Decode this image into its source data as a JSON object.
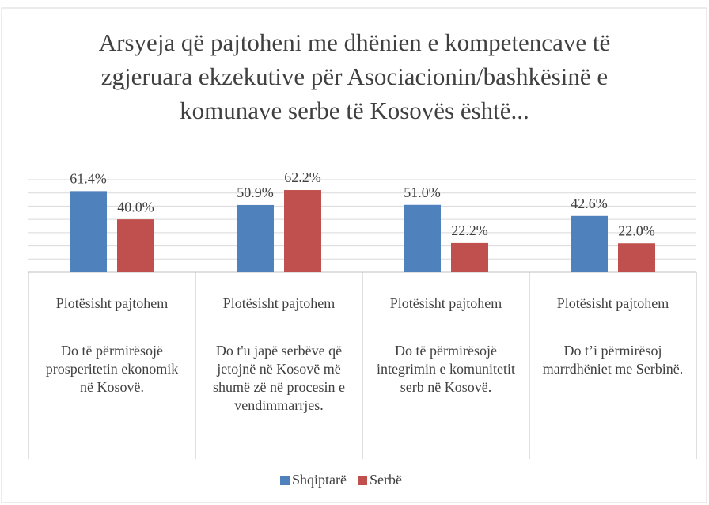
{
  "chart_data": {
    "type": "bar",
    "title": "Arsyeja që pajtoheni me dhënien e kompetencave të zgjeruara ekzekutive për Asociacionin/bashkësinë e komunave serbe të Kosovës është...",
    "category_groups": [
      "Plotësisht pajtohem",
      "Plotësisht pajtohem",
      "Plotësisht pajtohem",
      "Plotësisht pajtohem"
    ],
    "categories": [
      "Do të përmirësojë prosperitetin ekonomik në Kosovë.",
      "Do t'u japë serbëve që jetojnë në Kosovë më shumë zë në procesin e vendimmarrjes.",
      "Do të përmirësojë integrimin e komunitetit serb në Kosovë.",
      "Do t’i përmirësoj marrdhëniet me Serbinë."
    ],
    "series": [
      {
        "name": "Shqiptarë",
        "color": "#4f81bd",
        "values": [
          61.4,
          50.9,
          51.0,
          42.6
        ],
        "value_labels": [
          "61.4%",
          "50.9%",
          "51.0%",
          "42.6%"
        ]
      },
      {
        "name": "Serbë",
        "color": "#c0504d",
        "values": [
          40.0,
          62.2,
          22.2,
          22.0
        ],
        "value_labels": [
          "40.0%",
          "62.2%",
          "22.2%",
          "22.0%"
        ]
      }
    ],
    "ylim": [
      0,
      70
    ],
    "yticks": [
      0,
      10,
      20,
      30,
      40,
      50,
      60,
      70
    ],
    "grid": true,
    "show_ytick_labels": false,
    "legend": "bottom"
  }
}
